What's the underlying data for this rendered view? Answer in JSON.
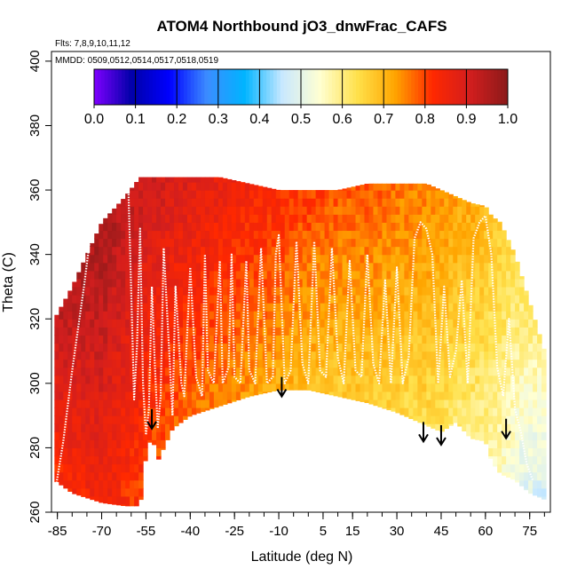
{
  "chart_data": {
    "type": "heatmap",
    "title": "ATOM4 Northbound jO3_dnwFrac_CAFS",
    "annotations": [
      "Flts: 7,8,9,10,11,12",
      "MMDD: 0509,0512,0514,0517,0518,0519"
    ],
    "xlabel": "Latitude (deg N)",
    "ylabel": "Theta (C)",
    "xlim": [
      -87,
      82
    ],
    "ylim": [
      260,
      403
    ],
    "x_ticks": [
      -85,
      -70,
      -55,
      -40,
      -25,
      -10,
      5,
      15,
      30,
      45,
      60,
      75
    ],
    "x_tick_labels": [
      "-85",
      "-70",
      "-55",
      "-40",
      "-25",
      "-10",
      "5",
      "15",
      "30",
      "45",
      "60",
      "75"
    ],
    "y_ticks": [
      260,
      280,
      300,
      320,
      340,
      360,
      380,
      400
    ],
    "y_tick_labels": [
      "260",
      "280",
      "300",
      "320",
      "340",
      "360",
      "380",
      "400"
    ],
    "colorbar": {
      "range": [
        0.0,
        1.0
      ],
      "ticks": [
        0.0,
        0.1,
        0.2,
        0.3,
        0.4,
        0.5,
        0.6,
        0.7,
        0.8,
        0.9,
        1.0
      ],
      "tick_labels": [
        "0.0",
        "0.1",
        "0.2",
        "0.3",
        "0.4",
        "0.5",
        "0.6",
        "0.7",
        "0.8",
        "0.9",
        "1.0"
      ],
      "colors": [
        "#7f00ff",
        "#0000a8",
        "#0000ff",
        "#3c8cff",
        "#00b4ff",
        "#c8e8ff",
        "#ffffd2",
        "#ffe14b",
        "#ffa500",
        "#ff2800",
        "#d21e1e",
        "#8b1a1a"
      ]
    },
    "curtain": {
      "lat": [
        -86,
        -80,
        -70,
        -62,
        -57,
        -55,
        -53,
        -51,
        -46,
        -40,
        -30,
        -20,
        -10,
        -5,
        0,
        10,
        20,
        30,
        40,
        45,
        50,
        55,
        60,
        62,
        65,
        70,
        75,
        80
      ],
      "top": [
        320,
        330,
        350,
        358,
        364,
        364,
        364,
        364,
        364,
        364,
        364,
        362,
        360,
        360,
        360,
        360,
        362,
        362,
        362,
        360,
        358,
        356,
        355,
        352,
        350,
        340,
        325,
        310
      ],
      "bottom": [
        270,
        266,
        263,
        262,
        262,
        278,
        284,
        276,
        286,
        290,
        293,
        296,
        298,
        298,
        298,
        296,
        294,
        291,
        287,
        285,
        288,
        283,
        282,
        276,
        272,
        270,
        266,
        264
      ],
      "value_by_lat": [
        [
          -86,
          0.87
        ],
        [
          -70,
          0.9
        ],
        [
          -60,
          0.86
        ],
        [
          -50,
          0.84
        ],
        [
          -40,
          0.82
        ],
        [
          -30,
          0.8
        ],
        [
          -20,
          0.78
        ],
        [
          -10,
          0.76
        ],
        [
          0,
          0.74
        ],
        [
          10,
          0.72
        ],
        [
          20,
          0.72
        ],
        [
          30,
          0.7
        ],
        [
          40,
          0.69
        ],
        [
          50,
          0.66
        ],
        [
          58,
          0.64
        ],
        [
          65,
          0.6
        ],
        [
          72,
          0.55
        ],
        [
          80,
          0.52
        ]
      ],
      "upper_boost": 0.07
    },
    "flight_track": {
      "lat": [
        -86,
        -83,
        -80,
        -76,
        -73,
        -70,
        -67,
        -64,
        -61,
        -59,
        -58,
        -57,
        -56,
        -55,
        -54,
        -53,
        -52,
        -51,
        -50,
        -49,
        -47,
        -46,
        -45,
        -43,
        -42,
        -40,
        -38,
        -36,
        -35,
        -34,
        -32,
        -30,
        -29,
        -27,
        -26,
        -25,
        -23,
        -21,
        -20,
        -18,
        -16,
        -14,
        -12,
        -11,
        -10,
        -8,
        -6,
        -4,
        -2,
        0,
        2,
        4,
        6,
        8,
        10,
        12,
        14,
        16,
        18,
        20,
        22,
        24,
        26,
        28,
        30,
        32,
        34,
        36,
        38,
        40,
        42,
        44,
        46,
        48,
        50,
        52,
        54,
        56,
        58,
        60,
        62,
        64,
        66,
        68,
        70,
        72,
        74,
        76
      ],
      "theta": [
        265,
        282,
        304,
        330,
        352,
        358,
        361,
        362,
        362,
        295,
        312,
        348,
        300,
        284,
        292,
        330,
        306,
        286,
        296,
        342,
        308,
        290,
        330,
        300,
        296,
        336,
        302,
        296,
        340,
        304,
        300,
        338,
        300,
        305,
        340,
        302,
        300,
        338,
        304,
        300,
        342,
        300,
        302,
        340,
        346,
        300,
        304,
        344,
        306,
        300,
        344,
        304,
        302,
        342,
        308,
        300,
        338,
        304,
        302,
        340,
        306,
        300,
        332,
        300,
        336,
        300,
        308,
        345,
        350,
        348,
        340,
        300,
        330,
        302,
        310,
        332,
        300,
        345,
        350,
        352,
        340,
        305,
        296,
        320,
        292,
        285,
        275,
        270
      ]
    },
    "arrows_lat": [
      -53,
      -9,
      39,
      45,
      67
    ],
    "arrows_theta": [
      292,
      302,
      288,
      287,
      289
    ]
  }
}
